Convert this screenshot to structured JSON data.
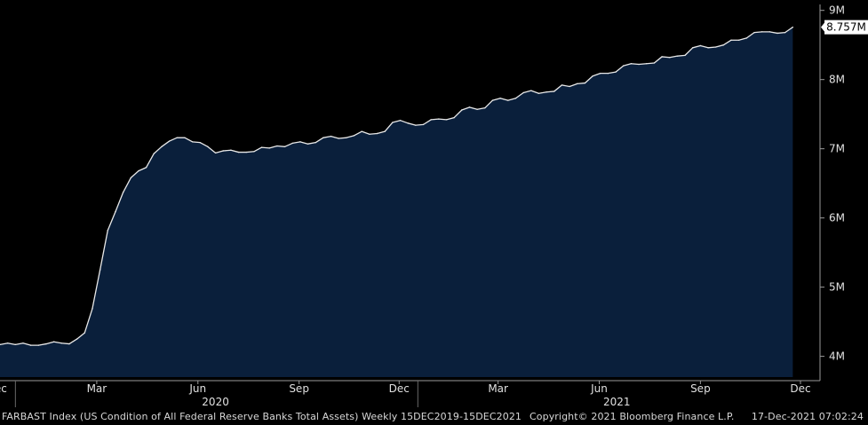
{
  "chart_data": {
    "type": "area",
    "series": [
      {
        "values": [
          4.17,
          4.19,
          4.17,
          4.19,
          4.16,
          4.16,
          4.18,
          4.21,
          4.19,
          4.18,
          4.25,
          4.34,
          4.69,
          5.25,
          5.82,
          6.09,
          6.37,
          6.58,
          6.68,
          6.73,
          6.93,
          7.03,
          7.11,
          7.16,
          7.16,
          7.1,
          7.09,
          7.03,
          6.94,
          6.97,
          6.98,
          6.95,
          6.95,
          6.96,
          7.02,
          7.01,
          7.04,
          7.03,
          7.08,
          7.1,
          7.07,
          7.09,
          7.16,
          7.18,
          7.15,
          7.16,
          7.19,
          7.25,
          7.21,
          7.22,
          7.25,
          7.38,
          7.41,
          7.37,
          7.34,
          7.35,
          7.42,
          7.43,
          7.42,
          7.45,
          7.56,
          7.6,
          7.57,
          7.59,
          7.7,
          7.73,
          7.7,
          7.73,
          7.81,
          7.84,
          7.8,
          7.82,
          7.83,
          7.92,
          7.9,
          7.94,
          7.95,
          8.05,
          8.09,
          8.09,
          8.11,
          8.2,
          8.23,
          8.22,
          8.23,
          8.24,
          8.33,
          8.32,
          8.34,
          8.35,
          8.46,
          8.49,
          8.46,
          8.47,
          8.5,
          8.57,
          8.57,
          8.6,
          8.68,
          8.69,
          8.69,
          8.67,
          8.68,
          8.757
        ]
      }
    ],
    "x_start": "2019-12-18",
    "x_end": "2021-12-15",
    "x_tick_labels": [
      {
        "label": "Dec",
        "date": "2019-12-15"
      },
      {
        "label": "Mar",
        "date": "2020-03-15"
      },
      {
        "label": "Jun",
        "date": "2020-06-15"
      },
      {
        "label": "Sep",
        "date": "2020-09-15"
      },
      {
        "label": "Dec",
        "date": "2020-12-15"
      },
      {
        "label": "Mar",
        "date": "2021-03-15"
      },
      {
        "label": "Jun",
        "date": "2021-06-15"
      },
      {
        "label": "Sep",
        "date": "2021-09-15"
      },
      {
        "label": "Dec",
        "date": "2021-12-15"
      }
    ],
    "year_labels": [
      {
        "label": "2020",
        "date": "2020-07-01"
      },
      {
        "label": "2021",
        "date": "2021-07-01"
      }
    ],
    "y_ticks": [
      {
        "value": 4,
        "label": "4M"
      },
      {
        "value": 5,
        "label": "5M"
      },
      {
        "value": 6,
        "label": "6M"
      },
      {
        "value": 7,
        "label": "7M"
      },
      {
        "value": 8,
        "label": "8M"
      },
      {
        "value": 9,
        "label": "9M"
      }
    ],
    "ylim": [
      3.7,
      9.15
    ],
    "last_value_label": "8.757M",
    "grid": false,
    "colors": {
      "area_fill": "#0a1f3b",
      "line": "#e8e8e8",
      "axis": "#9a9a9a",
      "label_box_bg": "#ffffff",
      "label_box_text": "#000000"
    }
  },
  "footer": {
    "index_info": "FARBAST Index (US Condition of All Federal Reserve Banks Total Assets)  Weekly 15DEC2019-15DEC2021",
    "copyright": "Copyright© 2021 Bloomberg Finance L.P.",
    "timestamp": "17-Dec-2021 07:02:24"
  }
}
